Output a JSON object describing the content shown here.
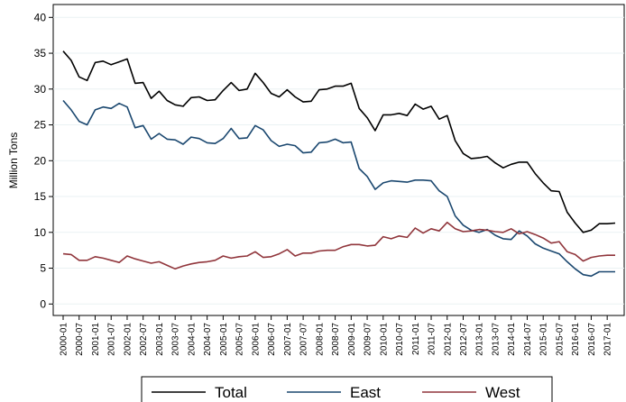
{
  "chart_data": {
    "type": "line",
    "y_label": "Million Tons",
    "categories": [
      "2000-01",
      null,
      "2000-07",
      null,
      "2001-01",
      null,
      "2001-07",
      null,
      "2002-01",
      null,
      "2002-07",
      null,
      "2003-01",
      null,
      "2003-07",
      null,
      "2004-01",
      null,
      "2004-07",
      null,
      "2005-01",
      null,
      "2005-07",
      null,
      "2006-01",
      null,
      "2006-07",
      null,
      "2007-01",
      null,
      "2007-07",
      null,
      "2008-01",
      null,
      "2008-07",
      null,
      "2009-01",
      null,
      "2009-07",
      null,
      "2010-01",
      null,
      "2010-07",
      null,
      "2011-01",
      null,
      "2011-07",
      null,
      "2012-01",
      null,
      "2012-07",
      null,
      "2013-01",
      null,
      "2013-07",
      null,
      "2014-01",
      null,
      "2014-07",
      null,
      "2015-01",
      null,
      "2015-07",
      null,
      "2016-01",
      null,
      "2016-07",
      null,
      "2017-01",
      null
    ],
    "series": [
      {
        "name": "Total",
        "color": "#000000",
        "values": [
          35.3,
          34.0,
          31.7,
          31.2,
          33.7,
          33.9,
          33.4,
          33.8,
          34.2,
          30.8,
          30.9,
          28.7,
          29.7,
          28.4,
          27.8,
          27.6,
          28.8,
          28.9,
          28.4,
          28.5,
          29.8,
          30.9,
          29.8,
          30.0,
          32.2,
          30.9,
          29.4,
          28.9,
          29.9,
          28.9,
          28.2,
          28.3,
          29.9,
          30.0,
          30.4,
          30.4,
          30.8,
          27.3,
          26.0,
          24.2,
          26.4,
          26.4,
          26.6,
          26.3,
          27.9,
          27.2,
          27.6,
          25.8,
          26.3,
          22.8,
          21.0,
          20.3,
          20.4,
          20.6,
          19.7,
          19.0,
          19.5,
          19.8,
          19.8,
          18.2,
          16.9,
          15.8,
          15.7,
          12.8,
          11.3,
          10.0,
          10.3,
          11.2,
          11.2,
          11.3
        ]
      },
      {
        "name": "East",
        "color": "#1a476f",
        "values": [
          28.4,
          27.1,
          25.5,
          25.0,
          27.1,
          27.5,
          27.3,
          28.0,
          27.5,
          24.6,
          24.9,
          23.0,
          23.8,
          23.0,
          22.9,
          22.3,
          23.3,
          23.1,
          22.5,
          22.4,
          23.1,
          24.5,
          23.1,
          23.2,
          24.9,
          24.3,
          22.8,
          22.0,
          22.3,
          22.1,
          21.1,
          21.2,
          22.5,
          22.6,
          23.0,
          22.5,
          22.6,
          18.9,
          17.8,
          16.0,
          16.9,
          17.2,
          17.1,
          17.0,
          17.3,
          17.3,
          17.2,
          15.8,
          15.0,
          12.3,
          11.0,
          10.3,
          10.0,
          10.4,
          9.6,
          9.1,
          9.0,
          10.2,
          9.5,
          8.4,
          7.8,
          7.4,
          7.0,
          5.9,
          4.9,
          4.1,
          3.9,
          4.5,
          4.5,
          4.5
        ]
      },
      {
        "name": "West",
        "color": "#90353b",
        "values": [
          7.0,
          6.9,
          6.1,
          6.1,
          6.6,
          6.4,
          6.1,
          5.8,
          6.7,
          6.3,
          6.0,
          5.7,
          5.9,
          5.4,
          4.9,
          5.3,
          5.6,
          5.8,
          5.9,
          6.1,
          6.7,
          6.4,
          6.6,
          6.7,
          7.3,
          6.5,
          6.6,
          7.0,
          7.6,
          6.7,
          7.1,
          7.1,
          7.4,
          7.5,
          7.5,
          8.0,
          8.3,
          8.3,
          8.1,
          8.2,
          9.4,
          9.1,
          9.5,
          9.3,
          10.6,
          9.9,
          10.5,
          10.2,
          11.4,
          10.5,
          10.1,
          10.2,
          10.4,
          10.3,
          10.1,
          10.0,
          10.5,
          9.8,
          10.1,
          9.7,
          9.2,
          8.5,
          8.7,
          7.3,
          6.9,
          6.0,
          6.5,
          6.7,
          6.8,
          6.8
        ]
      }
    ],
    "ylim": [
      -1.6,
      41.8
    ],
    "yticks": [
      0,
      5,
      10,
      15,
      20,
      25,
      30,
      35,
      40
    ],
    "grid": true,
    "legend": "bottom"
  }
}
